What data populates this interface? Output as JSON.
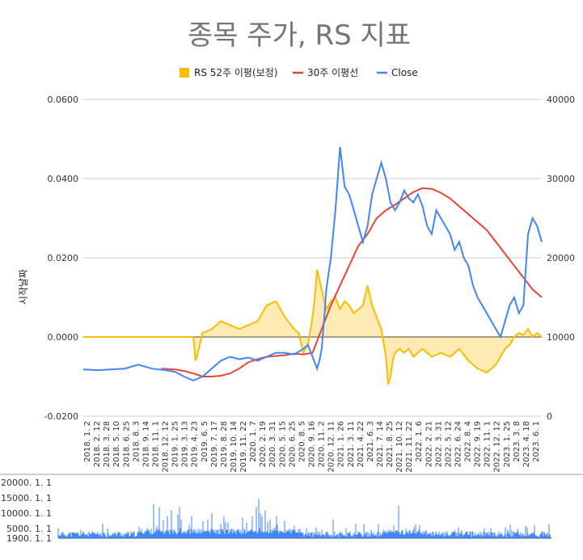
{
  "chart_data": {
    "type": "line",
    "title": "종목 주가, RS 지표",
    "ylabel": "시작날짜",
    "legend_position": "top",
    "legend": [
      {
        "name": "RS 52주 이평(보정)",
        "color": "#fbbc04"
      },
      {
        "name": "30주 이평선",
        "color": "#ea4335"
      },
      {
        "name": "Close",
        "color": "#4285f4"
      }
    ],
    "left_axis": {
      "ticks": [
        "0.0600",
        "0.0400",
        "0.0200",
        "0.0000",
        "-0.0200"
      ],
      "ylim": [
        -0.02,
        0.06
      ]
    },
    "right_axis": {
      "ticks": [
        "40000",
        "30000",
        "20000",
        "10000",
        "0"
      ],
      "ylim": [
        0,
        40000
      ]
    },
    "x_ticks": [
      "2018. 1. 2",
      "2018. 2. 12",
      "2018. 3. 28",
      "2018. 5. 10",
      "2018. 6. 25",
      "2018. 8. 3",
      "2018. 9. 14",
      "2018. 11. 1",
      "2018. 12. 12",
      "2019. 1. 25",
      "2019. 3. 13",
      "2019. 4. 23",
      "2019. 6. 5",
      "2019. 7. 17",
      "2019. 8. 28",
      "2019. 10. 14",
      "2019. 11. 22",
      "2020. 1. 7",
      "2020. 2. 19",
      "2020. 3. 31",
      "2020. 5. 15",
      "2020. 6. 25",
      "2020. 8. 5",
      "2020. 9. 16",
      "2020. 11. 2",
      "2020. 12. 11",
      "2021. 1. 26",
      "2021. 3. 11",
      "2021. 4. 22",
      "2021. 6. 3",
      "2021. 7. 14",
      "2021. 8. 25",
      "2021. 10. 12",
      "2021. 11. 22",
      "2022. 1. 6",
      "2022. 2. 21",
      "2022. 3. 31",
      "2022. 5. 12",
      "2022. 6. 24",
      "2022. 8. 4",
      "2022. 9. 19",
      "2022. 11. 1",
      "2022. 12. 12",
      "2023. 1. 25",
      "2023. 3. 8",
      "2023. 4. 18",
      "2023. 6. 1"
    ],
    "series": [
      {
        "name": "RS 52주 이평(보정)",
        "axis": "left",
        "color": "#fbbc04",
        "type": "area",
        "x": [
          0,
          0.03,
          0.06,
          0.09,
          0.12,
          0.15,
          0.18,
          0.21,
          0.24,
          0.245,
          0.25,
          0.26,
          0.28,
          0.3,
          0.32,
          0.34,
          0.36,
          0.38,
          0.4,
          0.42,
          0.44,
          0.46,
          0.47,
          0.48,
          0.49,
          0.5,
          0.505,
          0.51,
          0.52,
          0.53,
          0.535,
          0.54,
          0.55,
          0.56,
          0.57,
          0.58,
          0.59,
          0.6,
          0.61,
          0.62,
          0.63,
          0.64,
          0.65,
          0.66,
          0.665,
          0.67,
          0.675,
          0.68,
          0.69,
          0.7,
          0.71,
          0.72,
          0.73,
          0.74,
          0.76,
          0.78,
          0.8,
          0.82,
          0.84,
          0.86,
          0.88,
          0.9,
          0.91,
          0.92,
          0.93,
          0.94,
          0.95,
          0.96,
          0.97,
          0.98,
          0.99,
          1.0
        ],
        "values": [
          0,
          0,
          0,
          0,
          0,
          0,
          0,
          0,
          0,
          -0.006,
          -0.004,
          0.001,
          0.002,
          0.004,
          0.003,
          0.002,
          0.003,
          0.004,
          0.008,
          0.009,
          0.005,
          0.002,
          0.001,
          -0.004,
          -0.002,
          0.005,
          0.01,
          0.017,
          0.012,
          0.007,
          0.008,
          0.009,
          0.01,
          0.007,
          0.009,
          0.008,
          0.006,
          0.007,
          0.008,
          0.013,
          0.008,
          0.005,
          0.002,
          -0.005,
          -0.012,
          -0.01,
          -0.006,
          -0.004,
          -0.003,
          -0.004,
          -0.003,
          -0.005,
          -0.004,
          -0.003,
          -0.005,
          -0.004,
          -0.005,
          -0.003,
          -0.006,
          -0.008,
          -0.009,
          -0.007,
          -0.005,
          -0.003,
          -0.002,
          0,
          0.001,
          0.0005,
          0.002,
          0,
          0.001,
          0
        ]
      },
      {
        "name": "30주 이평선",
        "axis": "right",
        "color": "#ea4335",
        "type": "line",
        "x": [
          0.17,
          0.2,
          0.22,
          0.24,
          0.26,
          0.28,
          0.3,
          0.32,
          0.34,
          0.36,
          0.38,
          0.4,
          0.42,
          0.44,
          0.46,
          0.48,
          0.5,
          0.52,
          0.54,
          0.56,
          0.58,
          0.6,
          0.62,
          0.64,
          0.66,
          0.68,
          0.7,
          0.72,
          0.74,
          0.76,
          0.78,
          0.8,
          0.82,
          0.84,
          0.86,
          0.88,
          0.9,
          0.92,
          0.94,
          0.96,
          0.98,
          1.0
        ],
        "values": [
          6000,
          5900,
          5700,
          5400,
          5000,
          5000,
          5100,
          5400,
          6000,
          6800,
          7200,
          7500,
          7600,
          7700,
          7900,
          7800,
          8000,
          11000,
          14000,
          16500,
          19000,
          21500,
          23000,
          25000,
          26000,
          26700,
          27500,
          28300,
          28800,
          28700,
          28200,
          27500,
          26500,
          25500,
          24500,
          23500,
          22000,
          20500,
          19000,
          17500,
          16000,
          15000
        ]
      },
      {
        "name": "Close",
        "axis": "right",
        "color": "#4285f4",
        "type": "line",
        "x": [
          0,
          0.03,
          0.06,
          0.09,
          0.12,
          0.15,
          0.18,
          0.2,
          0.22,
          0.24,
          0.26,
          0.28,
          0.3,
          0.32,
          0.34,
          0.36,
          0.38,
          0.4,
          0.42,
          0.44,
          0.46,
          0.48,
          0.49,
          0.5,
          0.51,
          0.515,
          0.52,
          0.525,
          0.53,
          0.54,
          0.55,
          0.56,
          0.57,
          0.58,
          0.59,
          0.6,
          0.61,
          0.62,
          0.63,
          0.64,
          0.65,
          0.66,
          0.67,
          0.68,
          0.69,
          0.7,
          0.71,
          0.72,
          0.73,
          0.74,
          0.75,
          0.76,
          0.77,
          0.78,
          0.79,
          0.8,
          0.81,
          0.82,
          0.83,
          0.84,
          0.85,
          0.86,
          0.87,
          0.88,
          0.89,
          0.9,
          0.91,
          0.92,
          0.93,
          0.94,
          0.95,
          0.96,
          0.97,
          0.98,
          0.99,
          1.0
        ],
        "values": [
          5900,
          5800,
          5900,
          6000,
          6500,
          6000,
          5800,
          5600,
          5000,
          4500,
          5000,
          6000,
          7000,
          7500,
          7200,
          7400,
          7000,
          7500,
          8000,
          8000,
          7800,
          8500,
          9000,
          7500,
          6000,
          7000,
          8500,
          12000,
          16000,
          20000,
          26000,
          34000,
          29000,
          28000,
          26000,
          24000,
          22000,
          24000,
          28000,
          30000,
          32000,
          30000,
          27000,
          26000,
          27000,
          28500,
          27500,
          27000,
          28000,
          26500,
          24000,
          23000,
          26000,
          25000,
          24000,
          23000,
          21000,
          22000,
          20000,
          19000,
          16500,
          15000,
          14000,
          13000,
          12000,
          11000,
          10000,
          12000,
          14000,
          15000,
          13000,
          14000,
          23000,
          25000,
          24000,
          22000
        ]
      }
    ],
    "volume_chart": {
      "type": "bar",
      "ticks": [
        "20000. 1. 1",
        "15000. 1. 1",
        "10000. 1. 1",
        "5000. 1. 1",
        "1900. 1. 1"
      ],
      "ylim": [
        1900,
        20000
      ]
    }
  }
}
